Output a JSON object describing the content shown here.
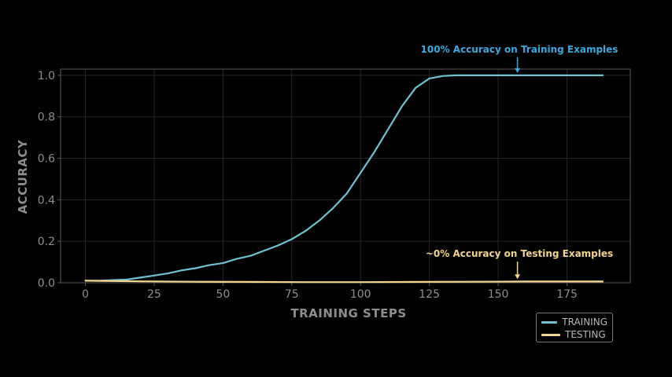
{
  "chart_data": {
    "type": "line",
    "xlabel": "TRAINING STEPS",
    "ylabel": "ACCURACY",
    "xlim": [
      -9,
      198
    ],
    "ylim": [
      0,
      1.03
    ],
    "xticks": [
      0,
      25,
      50,
      75,
      100,
      125,
      150,
      175
    ],
    "yticks": [
      0.0,
      0.2,
      0.4,
      0.6,
      0.8,
      1.0
    ],
    "xtick_labels": [
      "0",
      "25",
      "50",
      "75",
      "100",
      "125",
      "150",
      "175"
    ],
    "ytick_labels": [
      "0.0",
      "0.2",
      "0.4",
      "0.6",
      "0.8",
      "1.0"
    ],
    "grid": true,
    "legend_position": "bottom-right, outside plot",
    "series": [
      {
        "name": "TRAINING",
        "color": "#6ec3d2",
        "x": [
          0,
          5,
          10,
          15,
          20,
          25,
          30,
          35,
          40,
          45,
          50,
          55,
          60,
          65,
          70,
          75,
          80,
          85,
          90,
          95,
          100,
          105,
          110,
          115,
          120,
          125,
          130,
          135,
          140,
          150,
          160,
          170,
          188
        ],
        "y": [
          0.01,
          0.01,
          0.013,
          0.015,
          0.025,
          0.035,
          0.045,
          0.06,
          0.07,
          0.085,
          0.095,
          0.115,
          0.13,
          0.155,
          0.18,
          0.21,
          0.25,
          0.3,
          0.36,
          0.43,
          0.53,
          0.63,
          0.74,
          0.85,
          0.94,
          0.985,
          0.997,
          1.0,
          1.0,
          1.0,
          1.0,
          1.0,
          1.0
        ]
      },
      {
        "name": "TESTING",
        "color": "#f2d58a",
        "x": [
          0,
          20,
          40,
          60,
          80,
          100,
          120,
          140,
          160,
          188
        ],
        "y": [
          0.01,
          0.007,
          0.005,
          0.004,
          0.003,
          0.003,
          0.004,
          0.005,
          0.006,
          0.006
        ]
      }
    ],
    "annotations": [
      {
        "text": "100% Accuracy on Training Examples",
        "color": "#3aa8e0",
        "x": 157,
        "y": 1.0
      },
      {
        "text": "~0% Accuracy on Testing Examples",
        "color": "#f2d58a",
        "x": 157,
        "y": 0.006
      }
    ]
  }
}
